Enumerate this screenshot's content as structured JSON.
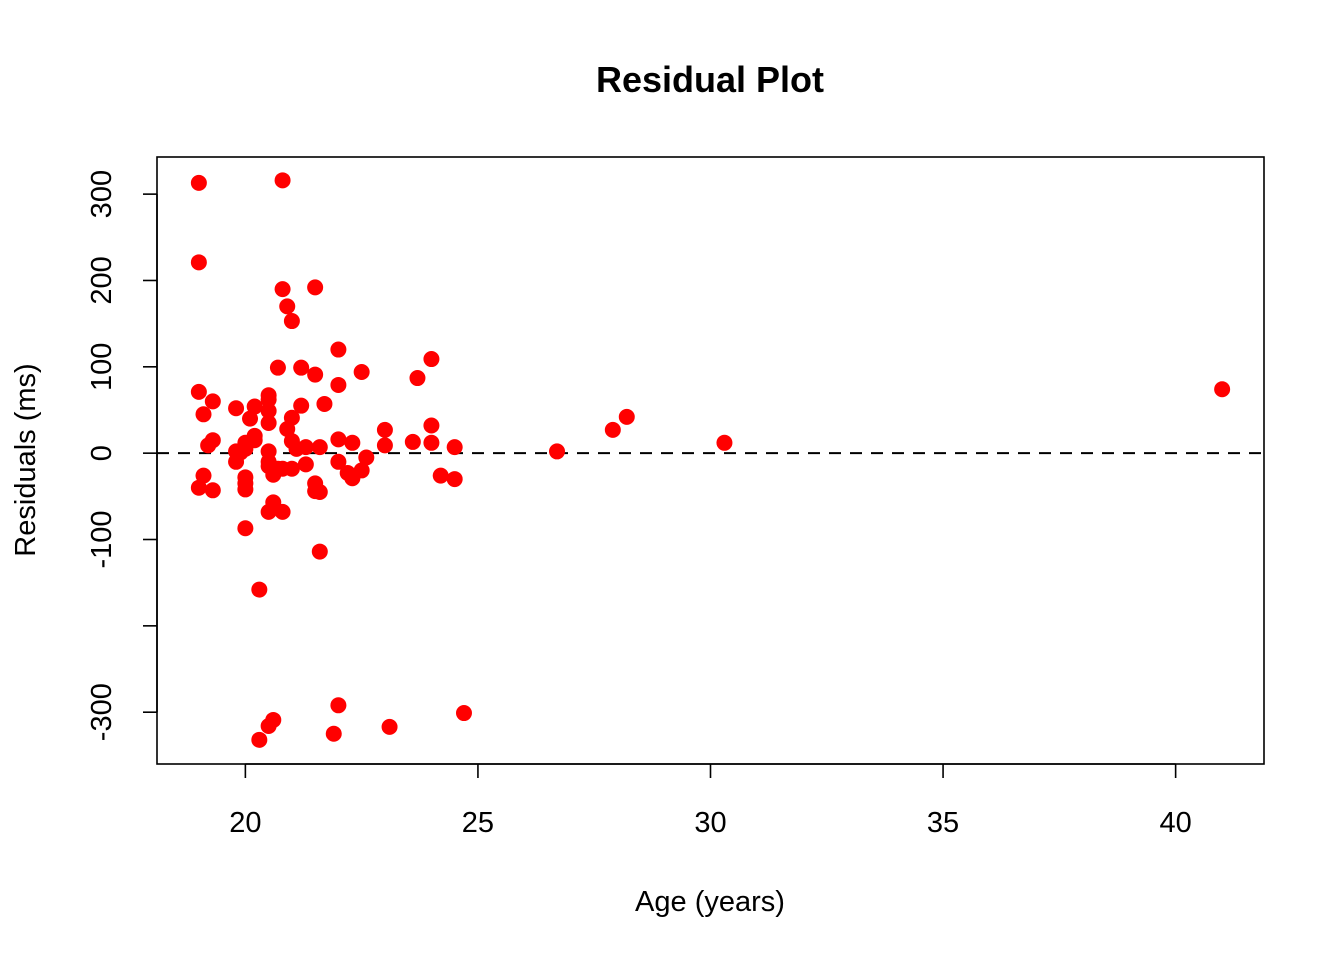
{
  "chart_data": {
    "type": "scatter",
    "title": "Residual Plot",
    "xlabel": "Age (years)",
    "ylabel": "Residuals (ms)",
    "xlim": [
      18.1,
      41.9
    ],
    "ylim": [
      -360,
      343
    ],
    "x_ticks": [
      20,
      25,
      30,
      35,
      40
    ],
    "x_tick_labels": [
      "20",
      "25",
      "30",
      "35",
      "40"
    ],
    "y_ticks": [
      -300,
      -200,
      -100,
      0,
      100,
      200,
      300
    ],
    "y_tick_labels": [
      "-300",
      "",
      "-100",
      "0",
      "100",
      "200",
      "300"
    ],
    "reference_line": {
      "y": 0,
      "style": "dashed",
      "color": "#000000"
    },
    "grid": false,
    "legend": "none",
    "point_color": "#ff0000",
    "series": [
      {
        "points": [
          [
            19.0,
            313
          ],
          [
            19.0,
            221
          ],
          [
            19.0,
            71
          ],
          [
            19.1,
            45
          ],
          [
            19.0,
            -40
          ],
          [
            19.3,
            60
          ],
          [
            19.3,
            15
          ],
          [
            19.2,
            9
          ],
          [
            19.1,
            -26
          ],
          [
            19.3,
            -43
          ],
          [
            19.8,
            52
          ],
          [
            19.8,
            2
          ],
          [
            19.8,
            -10
          ],
          [
            19.9,
            1
          ],
          [
            20.0,
            12
          ],
          [
            20.0,
            5
          ],
          [
            20.0,
            -28
          ],
          [
            20.0,
            -35
          ],
          [
            20.0,
            -42
          ],
          [
            20.0,
            -87
          ],
          [
            20.1,
            40
          ],
          [
            20.2,
            20
          ],
          [
            20.2,
            15
          ],
          [
            20.2,
            54
          ],
          [
            20.3,
            -158
          ],
          [
            20.3,
            -332
          ],
          [
            20.5,
            67
          ],
          [
            20.5,
            62
          ],
          [
            20.5,
            49
          ],
          [
            20.5,
            35
          ],
          [
            20.5,
            2
          ],
          [
            20.5,
            -10
          ],
          [
            20.5,
            -15
          ],
          [
            20.5,
            -68
          ],
          [
            20.6,
            -25
          ],
          [
            20.6,
            -57
          ],
          [
            20.6,
            -62
          ],
          [
            20.6,
            -20
          ],
          [
            20.5,
            -316
          ],
          [
            20.6,
            -309
          ],
          [
            20.7,
            99
          ],
          [
            20.7,
            -18
          ],
          [
            20.8,
            316
          ],
          [
            20.8,
            190
          ],
          [
            20.8,
            -18
          ],
          [
            20.8,
            -68
          ],
          [
            20.9,
            170
          ],
          [
            20.9,
            28
          ],
          [
            21.0,
            153
          ],
          [
            21.0,
            41
          ],
          [
            21.0,
            14
          ],
          [
            21.0,
            -18
          ],
          [
            21.1,
            5
          ],
          [
            21.2,
            99
          ],
          [
            21.2,
            55
          ],
          [
            21.3,
            7
          ],
          [
            21.3,
            -13
          ],
          [
            21.5,
            192
          ],
          [
            21.5,
            91
          ],
          [
            21.5,
            -35
          ],
          [
            21.5,
            -44
          ],
          [
            21.6,
            -45
          ],
          [
            21.6,
            7
          ],
          [
            21.6,
            -114
          ],
          [
            21.7,
            57
          ],
          [
            21.9,
            -325
          ],
          [
            22.0,
            120
          ],
          [
            22.0,
            79
          ],
          [
            22.0,
            16
          ],
          [
            22.0,
            -10
          ],
          [
            22.0,
            -292
          ],
          [
            22.2,
            -23
          ],
          [
            22.3,
            12
          ],
          [
            22.3,
            -29
          ],
          [
            22.5,
            94
          ],
          [
            22.5,
            -20
          ],
          [
            22.6,
            -5
          ],
          [
            23.0,
            27
          ],
          [
            23.0,
            9
          ],
          [
            23.1,
            -317
          ],
          [
            23.6,
            13
          ],
          [
            23.7,
            87
          ],
          [
            24.0,
            109
          ],
          [
            24.0,
            32
          ],
          [
            24.0,
            12
          ],
          [
            24.2,
            -26
          ],
          [
            24.5,
            7
          ],
          [
            24.5,
            -30
          ],
          [
            24.7,
            -301
          ],
          [
            26.7,
            2
          ],
          [
            27.9,
            27
          ],
          [
            28.2,
            42
          ],
          [
            30.3,
            12
          ],
          [
            41.0,
            74
          ]
        ]
      }
    ]
  }
}
